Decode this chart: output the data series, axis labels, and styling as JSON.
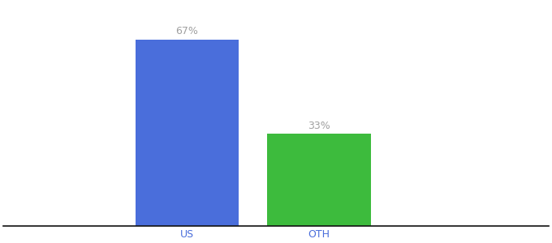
{
  "categories": [
    "US",
    "OTH"
  ],
  "values": [
    67,
    33
  ],
  "bar_colors": [
    "#4a6edb",
    "#3dbb3d"
  ],
  "label_texts": [
    "67%",
    "33%"
  ],
  "label_color": "#a0a0a0",
  "label_fontsize": 9,
  "tick_fontsize": 9,
  "tick_color": "#4a6edb",
  "background_color": "#ffffff",
  "ylim": [
    0,
    80
  ],
  "bar_width": 0.18,
  "figsize": [
    6.8,
    3.0
  ],
  "dpi": 100
}
